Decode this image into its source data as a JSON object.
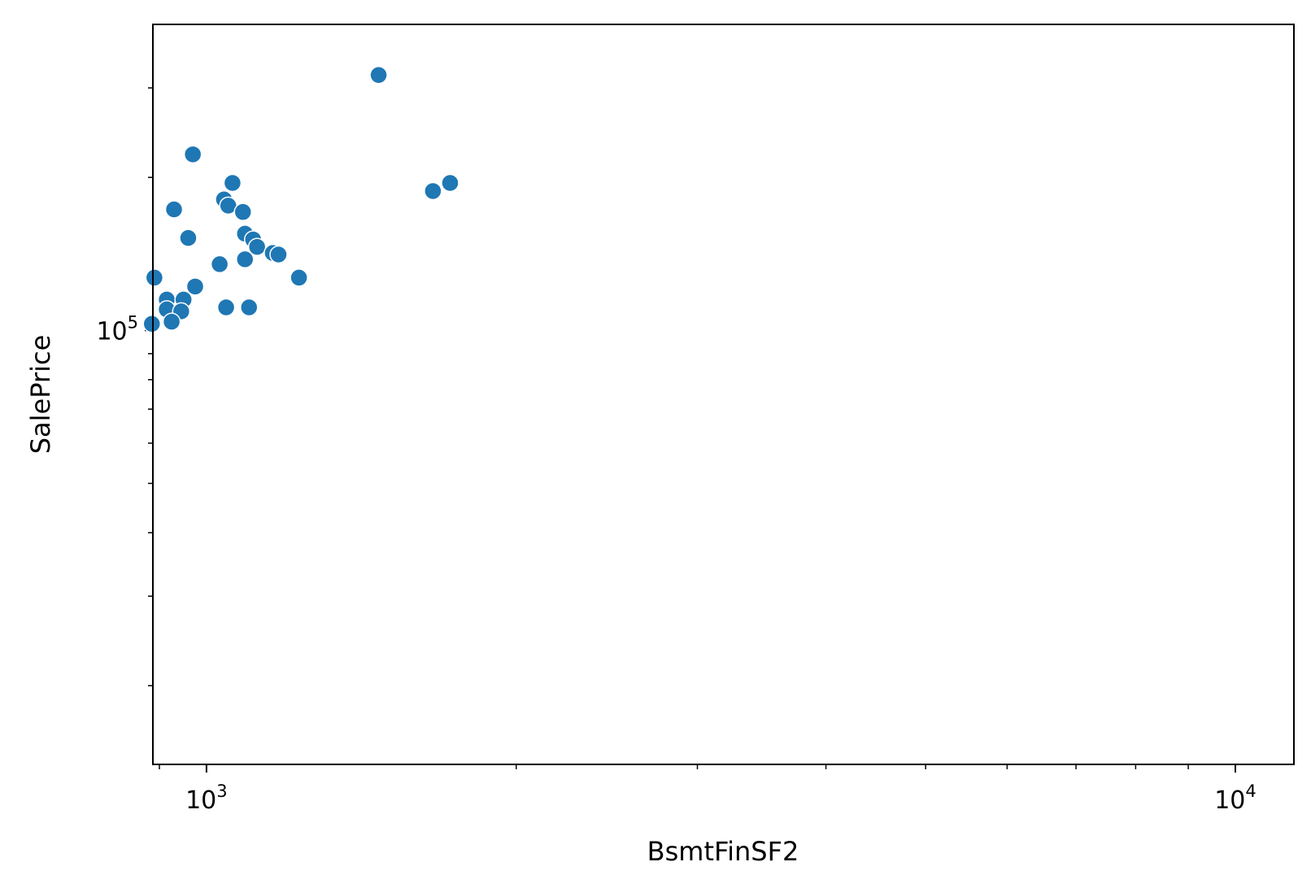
{
  "chart_data": {
    "type": "scatter",
    "xlabel": "BsmtFinSF2",
    "ylabel": "SalePrice",
    "xscale": "log",
    "yscale": "log",
    "xlim": [
      887,
      11400
    ],
    "ylim": [
      14000,
      400000
    ],
    "grid": false,
    "color": "#1f77b4",
    "x_ticks": [
      {
        "value": 1000,
        "base": "10",
        "exp": "3"
      },
      {
        "value": 10000,
        "base": "10",
        "exp": "4"
      }
    ],
    "y_ticks": [
      {
        "value": 100000,
        "base": "10",
        "exp": "5"
      }
    ],
    "points": [
      {
        "x": 1470,
        "y": 318000
      },
      {
        "x": 970,
        "y": 222000
      },
      {
        "x": 1060,
        "y": 195000
      },
      {
        "x": 1040,
        "y": 181000
      },
      {
        "x": 1050,
        "y": 176000
      },
      {
        "x": 1085,
        "y": 171000
      },
      {
        "x": 1090,
        "y": 155000
      },
      {
        "x": 1110,
        "y": 151000
      },
      {
        "x": 1120,
        "y": 146000
      },
      {
        "x": 1160,
        "y": 142000
      },
      {
        "x": 1175,
        "y": 141000
      },
      {
        "x": 1090,
        "y": 138000
      },
      {
        "x": 1030,
        "y": 135000
      },
      {
        "x": 1230,
        "y": 127000
      },
      {
        "x": 960,
        "y": 152000
      },
      {
        "x": 930,
        "y": 173000
      },
      {
        "x": 1660,
        "y": 188000
      },
      {
        "x": 1725,
        "y": 195000
      },
      {
        "x": 975,
        "y": 122000
      },
      {
        "x": 890,
        "y": 127000
      },
      {
        "x": 915,
        "y": 115000
      },
      {
        "x": 950,
        "y": 115000
      },
      {
        "x": 915,
        "y": 110000
      },
      {
        "x": 945,
        "y": 109000
      },
      {
        "x": 1045,
        "y": 111000
      },
      {
        "x": 1100,
        "y": 111000
      },
      {
        "x": 925,
        "y": 104000
      },
      {
        "x": 885,
        "y": 103000
      }
    ]
  }
}
